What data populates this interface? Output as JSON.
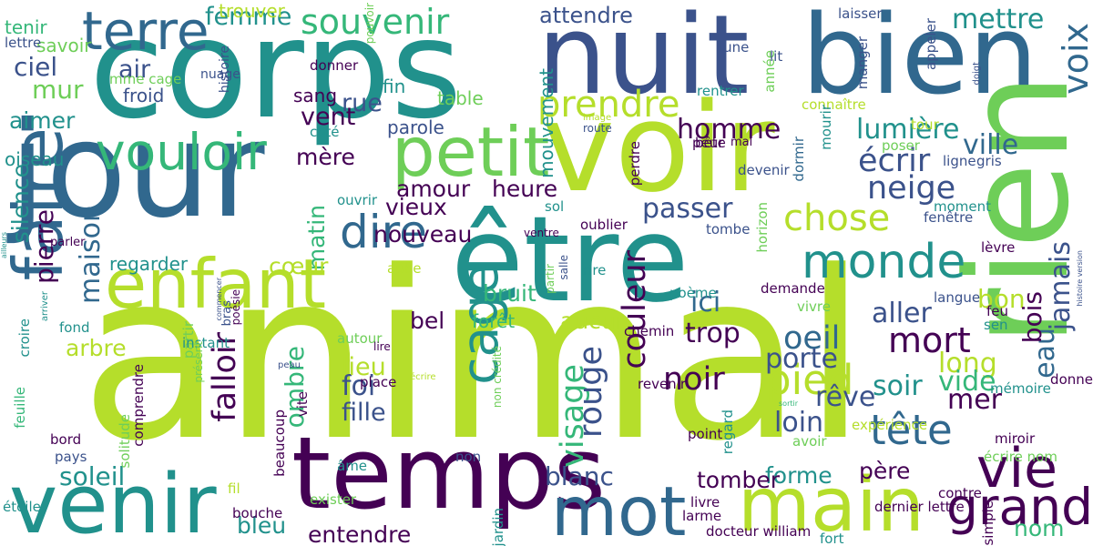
{
  "palette": {
    "dark_purple": "#440154",
    "indigo": "#3b528b",
    "blue": "#31688e",
    "teal": "#21918c",
    "green": "#35b779",
    "light_green": "#6ece58",
    "yellow_green": "#b5de2b"
  },
  "words": [
    {
      "text": "animal",
      "color": "#b5de2b",
      "orientation": "horizontal"
    },
    {
      "text": "corps",
      "color": "#21918c",
      "orientation": "horizontal"
    },
    {
      "text": "jour",
      "color": "#31688e",
      "orientation": "horizontal"
    },
    {
      "text": "voir",
      "color": "#b5de2b",
      "orientation": "horizontal"
    },
    {
      "text": "nuit",
      "color": "#3b528b",
      "orientation": "horizontal"
    },
    {
      "text": "bien",
      "color": "#31688e",
      "orientation": "horizontal"
    },
    {
      "text": "rien",
      "color": "#6ece58",
      "orientation": "vertical"
    },
    {
      "text": "être",
      "color": "#21918c",
      "orientation": "horizontal"
    },
    {
      "text": "temps",
      "color": "#440154",
      "orientation": "horizontal"
    },
    {
      "text": "venir",
      "color": "#21918c",
      "orientation": "horizontal"
    },
    {
      "text": "enfant",
      "color": "#b5de2b",
      "orientation": "horizontal"
    },
    {
      "text": "main",
      "color": "#b5de2b",
      "orientation": "horizontal"
    },
    {
      "text": "mot",
      "color": "#31688e",
      "orientation": "horizontal"
    },
    {
      "text": "petit",
      "color": "#6ece58",
      "orientation": "horizontal"
    },
    {
      "text": "faire",
      "color": "#31688e",
      "orientation": "vertical"
    },
    {
      "text": "terre",
      "color": "#31688e",
      "orientation": "horizontal"
    },
    {
      "text": "vouloir",
      "color": "#35b779",
      "orientation": "horizontal"
    },
    {
      "text": "souvenir",
      "color": "#35b779",
      "orientation": "horizontal"
    },
    {
      "text": "monde",
      "color": "#21918c",
      "orientation": "horizontal"
    },
    {
      "text": "vie",
      "color": "#440154",
      "orientation": "horizontal"
    },
    {
      "text": "chose",
      "color": "#b5de2b",
      "orientation": "horizontal"
    },
    {
      "text": "prendre",
      "color": "#b5de2b",
      "orientation": "horizontal"
    },
    {
      "text": "dire",
      "color": "#31688e",
      "orientation": "horizontal"
    },
    {
      "text": "cage",
      "color": "#21918c",
      "orientation": "vertical"
    },
    {
      "text": "grand",
      "color": "#440154",
      "orientation": "horizontal"
    },
    {
      "text": "mettre",
      "color": "#21918c",
      "orientation": "horizontal"
    },
    {
      "text": "voix",
      "color": "#31688e",
      "orientation": "vertical"
    },
    {
      "text": "ville",
      "color": "#31688e",
      "orientation": "horizontal"
    },
    {
      "text": "lumière",
      "color": "#21918c",
      "orientation": "horizontal"
    },
    {
      "text": "homme",
      "color": "#440154",
      "orientation": "horizontal"
    },
    {
      "text": "tête",
      "color": "#31688e",
      "orientation": "horizontal"
    },
    {
      "text": "mort",
      "color": "#440154",
      "orientation": "horizontal"
    },
    {
      "text": "oeil",
      "color": "#31688e",
      "orientation": "horizontal"
    },
    {
      "text": "pied",
      "color": "#b5de2b",
      "orientation": "horizontal"
    },
    {
      "text": "noir",
      "color": "#440154",
      "orientation": "horizontal"
    },
    {
      "text": "loin",
      "color": "#3b528b",
      "orientation": "horizontal"
    },
    {
      "text": "ici",
      "color": "#31688e",
      "orientation": "horizontal"
    },
    {
      "text": "trop",
      "color": "#440154",
      "orientation": "horizontal"
    },
    {
      "text": "aller",
      "color": "#3b528b",
      "orientation": "horizontal"
    },
    {
      "text": "porte",
      "color": "#3b528b",
      "orientation": "horizontal"
    },
    {
      "text": "soir",
      "color": "#21918c",
      "orientation": "horizontal"
    },
    {
      "text": "rêve",
      "color": "#3b528b",
      "orientation": "horizontal"
    },
    {
      "text": "eau",
      "color": "#31688e",
      "orientation": "vertical"
    },
    {
      "text": "jamais",
      "color": "#3b528b",
      "orientation": "vertical"
    },
    {
      "text": "neige",
      "color": "#3b528b",
      "orientation": "horizontal"
    },
    {
      "text": "écrir",
      "color": "#3b528b",
      "orientation": "horizontal"
    },
    {
      "text": "long",
      "color": "#b5de2b",
      "orientation": "horizontal"
    },
    {
      "text": "vide",
      "color": "#35b779",
      "orientation": "horizontal"
    },
    {
      "text": "mer",
      "color": "#440154",
      "orientation": "horizontal"
    },
    {
      "text": "bon",
      "color": "#b5de2b",
      "orientation": "horizontal"
    },
    {
      "text": "bois",
      "color": "#440154",
      "orientation": "vertical"
    },
    {
      "text": "passer",
      "color": "#3b528b",
      "orientation": "horizontal"
    },
    {
      "text": "amour",
      "color": "#440154",
      "orientation": "horizontal"
    },
    {
      "text": "heure",
      "color": "#440154",
      "orientation": "horizontal"
    },
    {
      "text": "vieux",
      "color": "#440154",
      "orientation": "horizontal"
    },
    {
      "text": "maison",
      "color": "#31688e",
      "orientation": "vertical"
    },
    {
      "text": "pierre",
      "color": "#440154",
      "orientation": "vertical"
    },
    {
      "text": "silence",
      "color": "#21918c",
      "orientation": "vertical"
    },
    {
      "text": "aimer",
      "color": "#21918c",
      "orientation": "horizontal"
    },
    {
      "text": "ciel",
      "color": "#3b528b",
      "orientation": "horizontal"
    },
    {
      "text": "mur",
      "color": "#6ece58",
      "orientation": "horizontal"
    },
    {
      "text": "air",
      "color": "#3b528b",
      "orientation": "horizontal"
    },
    {
      "text": "femme",
      "color": "#21918c",
      "orientation": "horizontal"
    },
    {
      "text": "rue",
      "color": "#3b528b",
      "orientation": "horizontal"
    },
    {
      "text": "vent",
      "color": "#440154",
      "orientation": "horizontal"
    },
    {
      "text": "mère",
      "color": "#440154",
      "orientation": "horizontal"
    },
    {
      "text": "matin",
      "color": "#35b779",
      "orientation": "vertical"
    },
    {
      "text": "cœur",
      "color": "#b5de2b",
      "orientation": "horizontal"
    },
    {
      "text": "falloir",
      "color": "#440154",
      "orientation": "vertical"
    },
    {
      "text": "arbre",
      "color": "#b5de2b",
      "orientation": "horizontal"
    },
    {
      "text": "soleil",
      "color": "#21918c",
      "orientation": "horizontal"
    },
    {
      "text": "foi",
      "color": "#3b528b",
      "orientation": "horizontal"
    },
    {
      "text": "lieu",
      "color": "#b5de2b",
      "orientation": "horizontal"
    },
    {
      "text": "fille",
      "color": "#3b528b",
      "orientation": "horizontal"
    },
    {
      "text": "ombre",
      "color": "#35b779",
      "orientation": "vertical"
    },
    {
      "text": "visage",
      "color": "#35b779",
      "orientation": "vertical"
    },
    {
      "text": "rouge",
      "color": "#3b528b",
      "orientation": "vertical"
    },
    {
      "text": "couleur",
      "color": "#440154",
      "orientation": "vertical"
    },
    {
      "text": "blanc",
      "color": "#3b528b",
      "orientation": "horizontal"
    },
    {
      "text": "entendre",
      "color": "#440154",
      "orientation": "horizontal"
    },
    {
      "text": "forme",
      "color": "#21918c",
      "orientation": "horizontal"
    },
    {
      "text": "père",
      "color": "#440154",
      "orientation": "horizontal"
    },
    {
      "text": "nom",
      "color": "#35b779",
      "orientation": "horizontal"
    },
    {
      "text": "bleu",
      "color": "#21918c",
      "orientation": "horizontal"
    },
    {
      "text": "tomber",
      "color": "#440154",
      "orientation": "horizontal"
    },
    {
      "text": "bel",
      "color": "#440154",
      "orientation": "horizontal"
    },
    {
      "text": "aucun",
      "color": "#b5de2b",
      "orientation": "horizontal"
    },
    {
      "text": "nouveau",
      "color": "#440154",
      "orientation": "horizontal"
    },
    {
      "text": "bruit",
      "color": "#35b779",
      "orientation": "horizontal"
    },
    {
      "text": "forêt",
      "color": "#35b779",
      "orientation": "horizontal"
    },
    {
      "text": "attendre",
      "color": "#3b528b",
      "orientation": "horizontal"
    },
    {
      "text": "fin",
      "color": "#21918c",
      "orientation": "horizontal"
    },
    {
      "text": "table",
      "color": "#6ece58",
      "orientation": "horizontal"
    },
    {
      "text": "sang",
      "color": "#440154",
      "orientation": "horizontal"
    },
    {
      "text": "parole",
      "color": "#3b528b",
      "orientation": "horizontal"
    },
    {
      "text": "mouvement",
      "color": "#21918c",
      "orientation": "vertical"
    },
    {
      "text": "froid",
      "color": "#3b528b",
      "orientation": "horizontal"
    },
    {
      "text": "regarder",
      "color": "#21918c",
      "orientation": "horizontal"
    },
    {
      "text": "oiseau",
      "color": "#21918c",
      "orientation": "horizontal"
    },
    {
      "text": "trouver",
      "color": "#b5de2b",
      "orientation": "horizontal"
    },
    {
      "text": "tenir",
      "color": "#35b779",
      "orientation": "horizontal"
    },
    {
      "text": "savoir",
      "color": "#6ece58",
      "orientation": "horizontal"
    },
    {
      "text": "donner",
      "color": "#440154",
      "orientation": "horizontal"
    },
    {
      "text": "nuage",
      "color": "#3b528b",
      "orientation": "horizontal"
    },
    {
      "text": "mme cage",
      "color": "#6ece58",
      "orientation": "horizontal"
    },
    {
      "text": "lettre",
      "color": "#3b528b",
      "orientation": "horizontal"
    },
    {
      "text": "histoire",
      "color": "#3b528b",
      "orientation": "vertical"
    },
    {
      "text": "pouvoir",
      "color": "#6ece58",
      "orientation": "vertical"
    },
    {
      "text": "laisser",
      "color": "#3b528b",
      "orientation": "horizontal"
    },
    {
      "text": "lune",
      "color": "#3b528b",
      "orientation": "horizontal"
    },
    {
      "text": "année",
      "color": "#6ece58",
      "orientation": "vertical"
    },
    {
      "text": "lit",
      "color": "#3b528b",
      "orientation": "horizontal"
    },
    {
      "text": "manger",
      "color": "#3b528b",
      "orientation": "vertical"
    },
    {
      "text": "appeler",
      "color": "#3b528b",
      "orientation": "vertical"
    },
    {
      "text": "doigt",
      "color": "#3b528b",
      "orientation": "vertical"
    },
    {
      "text": "rentrer",
      "color": "#21918c",
      "orientation": "horizontal"
    },
    {
      "text": "connaître",
      "color": "#b5de2b",
      "orientation": "horizontal"
    },
    {
      "text": "tour",
      "color": "#b5de2b",
      "orientation": "horizontal"
    },
    {
      "text": "image",
      "color": "#b5de2b",
      "orientation": "horizontal"
    },
    {
      "text": "route",
      "color": "#3b528b",
      "orientation": "horizontal"
    },
    {
      "text": "bête",
      "color": "#440154",
      "orientation": "horizontal"
    },
    {
      "text": "mal",
      "color": "#440154",
      "orientation": "horizontal"
    },
    {
      "text": "poser",
      "color": "#6ece58",
      "orientation": "horizontal"
    },
    {
      "text": "ligne",
      "color": "#3b528b",
      "orientation": "horizontal"
    },
    {
      "text": "gris",
      "color": "#3b528b",
      "orientation": "horizontal"
    },
    {
      "text": "devenir",
      "color": "#3b528b",
      "orientation": "horizontal"
    },
    {
      "text": "peur",
      "color": "#440154",
      "orientation": "horizontal"
    },
    {
      "text": "dormir",
      "color": "#31688e",
      "orientation": "vertical"
    },
    {
      "text": "mourir",
      "color": "#21918c",
      "orientation": "vertical"
    },
    {
      "text": "perdre",
      "color": "#440154",
      "orientation": "vertical"
    },
    {
      "text": "horizon",
      "color": "#6ece58",
      "orientation": "vertical"
    },
    {
      "text": "moment",
      "color": "#21918c",
      "orientation": "horizontal"
    },
    {
      "text": "fenêtre",
      "color": "#3b528b",
      "orientation": "horizontal"
    },
    {
      "text": "tombe",
      "color": "#3b528b",
      "orientation": "horizontal"
    },
    {
      "text": "lèvre",
      "color": "#440154",
      "orientation": "horizontal"
    },
    {
      "text": "demande",
      "color": "#440154",
      "orientation": "horizontal"
    },
    {
      "text": "langue",
      "color": "#3b528b",
      "orientation": "horizontal"
    },
    {
      "text": "vivre",
      "color": "#6ece58",
      "orientation": "horizontal"
    },
    {
      "text": "feu",
      "color": "#440154",
      "orientation": "horizontal"
    },
    {
      "text": "sen",
      "color": "#21918c",
      "orientation": "horizontal"
    },
    {
      "text": "chemin",
      "color": "#440154",
      "orientation": "horizontal"
    },
    {
      "text": "poème",
      "color": "#21918c",
      "orientation": "horizontal"
    },
    {
      "text": "rire",
      "color": "#21918c",
      "orientation": "horizontal"
    },
    {
      "text": "aube",
      "color": "#b5de2b",
      "orientation": "horizontal"
    },
    {
      "text": "oublier",
      "color": "#440154",
      "orientation": "horizontal"
    },
    {
      "text": "sol",
      "color": "#21918c",
      "orientation": "horizontal"
    },
    {
      "text": "ouvrir",
      "color": "#21918c",
      "orientation": "horizontal"
    },
    {
      "text": "ventre",
      "color": "#440154",
      "orientation": "horizontal"
    },
    {
      "text": "salle",
      "color": "#3b528b",
      "orientation": "vertical"
    },
    {
      "text": "partir",
      "color": "#6ece58",
      "orientation": "vertical"
    },
    {
      "text": "partir",
      "color": "#6ece58",
      "orientation": "vertical"
    },
    {
      "text": "instant",
      "color": "#21918c",
      "orientation": "horizontal"
    },
    {
      "text": "fond",
      "color": "#21918c",
      "orientation": "horizontal"
    },
    {
      "text": "autour",
      "color": "#6ece58",
      "orientation": "horizontal"
    },
    {
      "text": "lire",
      "color": "#440154",
      "orientation": "horizontal"
    },
    {
      "text": "peau",
      "color": "#3b528b",
      "orientation": "horizontal"
    },
    {
      "text": "place",
      "color": "#440154",
      "orientation": "horizontal"
    },
    {
      "text": "écrire",
      "color": "#b5de2b",
      "orientation": "horizontal"
    },
    {
      "text": "non crédité",
      "color": "#6ece58",
      "orientation": "vertical"
    },
    {
      "text": "vite",
      "color": "#440154",
      "orientation": "vertical"
    },
    {
      "text": "beaucoup",
      "color": "#440154",
      "orientation": "vertical"
    },
    {
      "text": "feuille",
      "color": "#35b779",
      "orientation": "vertical"
    },
    {
      "text": "croire",
      "color": "#21918c",
      "orientation": "vertical"
    },
    {
      "text": "arriver",
      "color": "#21918c",
      "orientation": "vertical"
    },
    {
      "text": "solitude",
      "color": "#6ece58",
      "orientation": "vertical"
    },
    {
      "text": "bord",
      "color": "#440154",
      "orientation": "horizontal"
    },
    {
      "text": "pays",
      "color": "#3b528b",
      "orientation": "horizontal"
    },
    {
      "text": "étoile",
      "color": "#21918c",
      "orientation": "horizontal"
    },
    {
      "text": "âme",
      "color": "#21918c",
      "orientation": "horizontal"
    },
    {
      "text": "fil",
      "color": "#b5de2b",
      "orientation": "horizontal"
    },
    {
      "text": "bouche",
      "color": "#440154",
      "orientation": "horizontal"
    },
    {
      "text": "exister",
      "color": "#6ece58",
      "orientation": "horizontal"
    },
    {
      "text": "non",
      "color": "#3b528b",
      "orientation": "horizontal"
    },
    {
      "text": "jardin",
      "color": "#21918c",
      "orientation": "vertical"
    },
    {
      "text": "revenir",
      "color": "#440154",
      "orientation": "horizontal"
    },
    {
      "text": "regard",
      "color": "#21918c",
      "orientation": "vertical"
    },
    {
      "text": "point",
      "color": "#440154",
      "orientation": "horizontal"
    },
    {
      "text": "avoir",
      "color": "#6ece58",
      "orientation": "horizontal"
    },
    {
      "text": "sortir",
      "color": "#35b779",
      "orientation": "horizontal"
    },
    {
      "text": "expérience",
      "color": "#b5de2b",
      "orientation": "horizontal"
    },
    {
      "text": "mémoire",
      "color": "#21918c",
      "orientation": "horizontal"
    },
    {
      "text": "miroir",
      "color": "#440154",
      "orientation": "horizontal"
    },
    {
      "text": "écrire nom",
      "color": "#6ece58",
      "orientation": "horizontal"
    },
    {
      "text": "contre",
      "color": "#440154",
      "orientation": "horizontal"
    },
    {
      "text": "dernier lettre",
      "color": "#440154",
      "orientation": "horizontal"
    },
    {
      "text": "simple",
      "color": "#440154",
      "orientation": "vertical"
    },
    {
      "text": "fort",
      "color": "#21918c",
      "orientation": "horizontal"
    },
    {
      "text": "docteur william",
      "color": "#440154",
      "orientation": "horizontal"
    },
    {
      "text": "livre",
      "color": "#440154",
      "orientation": "horizontal"
    },
    {
      "text": "larme",
      "color": "#440154",
      "orientation": "horizontal"
    },
    {
      "text": "donne",
      "color": "#440154",
      "orientation": "horizontal"
    },
    {
      "text": "histoire version",
      "color": "#3b528b",
      "orientation": "vertical"
    },
    {
      "text": "bras",
      "color": "#3b528b",
      "orientation": "vertical"
    },
    {
      "text": "poésie",
      "color": "#440154",
      "orientation": "vertical"
    },
    {
      "text": "présent",
      "color": "#6ece58",
      "orientation": "vertical"
    },
    {
      "text": "comprendre",
      "color": "#440154",
      "orientation": "vertical"
    },
    {
      "text": "côté",
      "color": "#21918c",
      "orientation": "horizontal"
    },
    {
      "text": "parler",
      "color": "#440154",
      "orientation": "horizontal"
    },
    {
      "text": "ailleurs",
      "color": "#21918c",
      "orientation": "vertical"
    },
    {
      "text": "commencer",
      "color": "#3b528b",
      "orientation": "vertical"
    },
    {
      "text": "part",
      "color": "#6ece58",
      "orientation": "vertical"
    }
  ]
}
